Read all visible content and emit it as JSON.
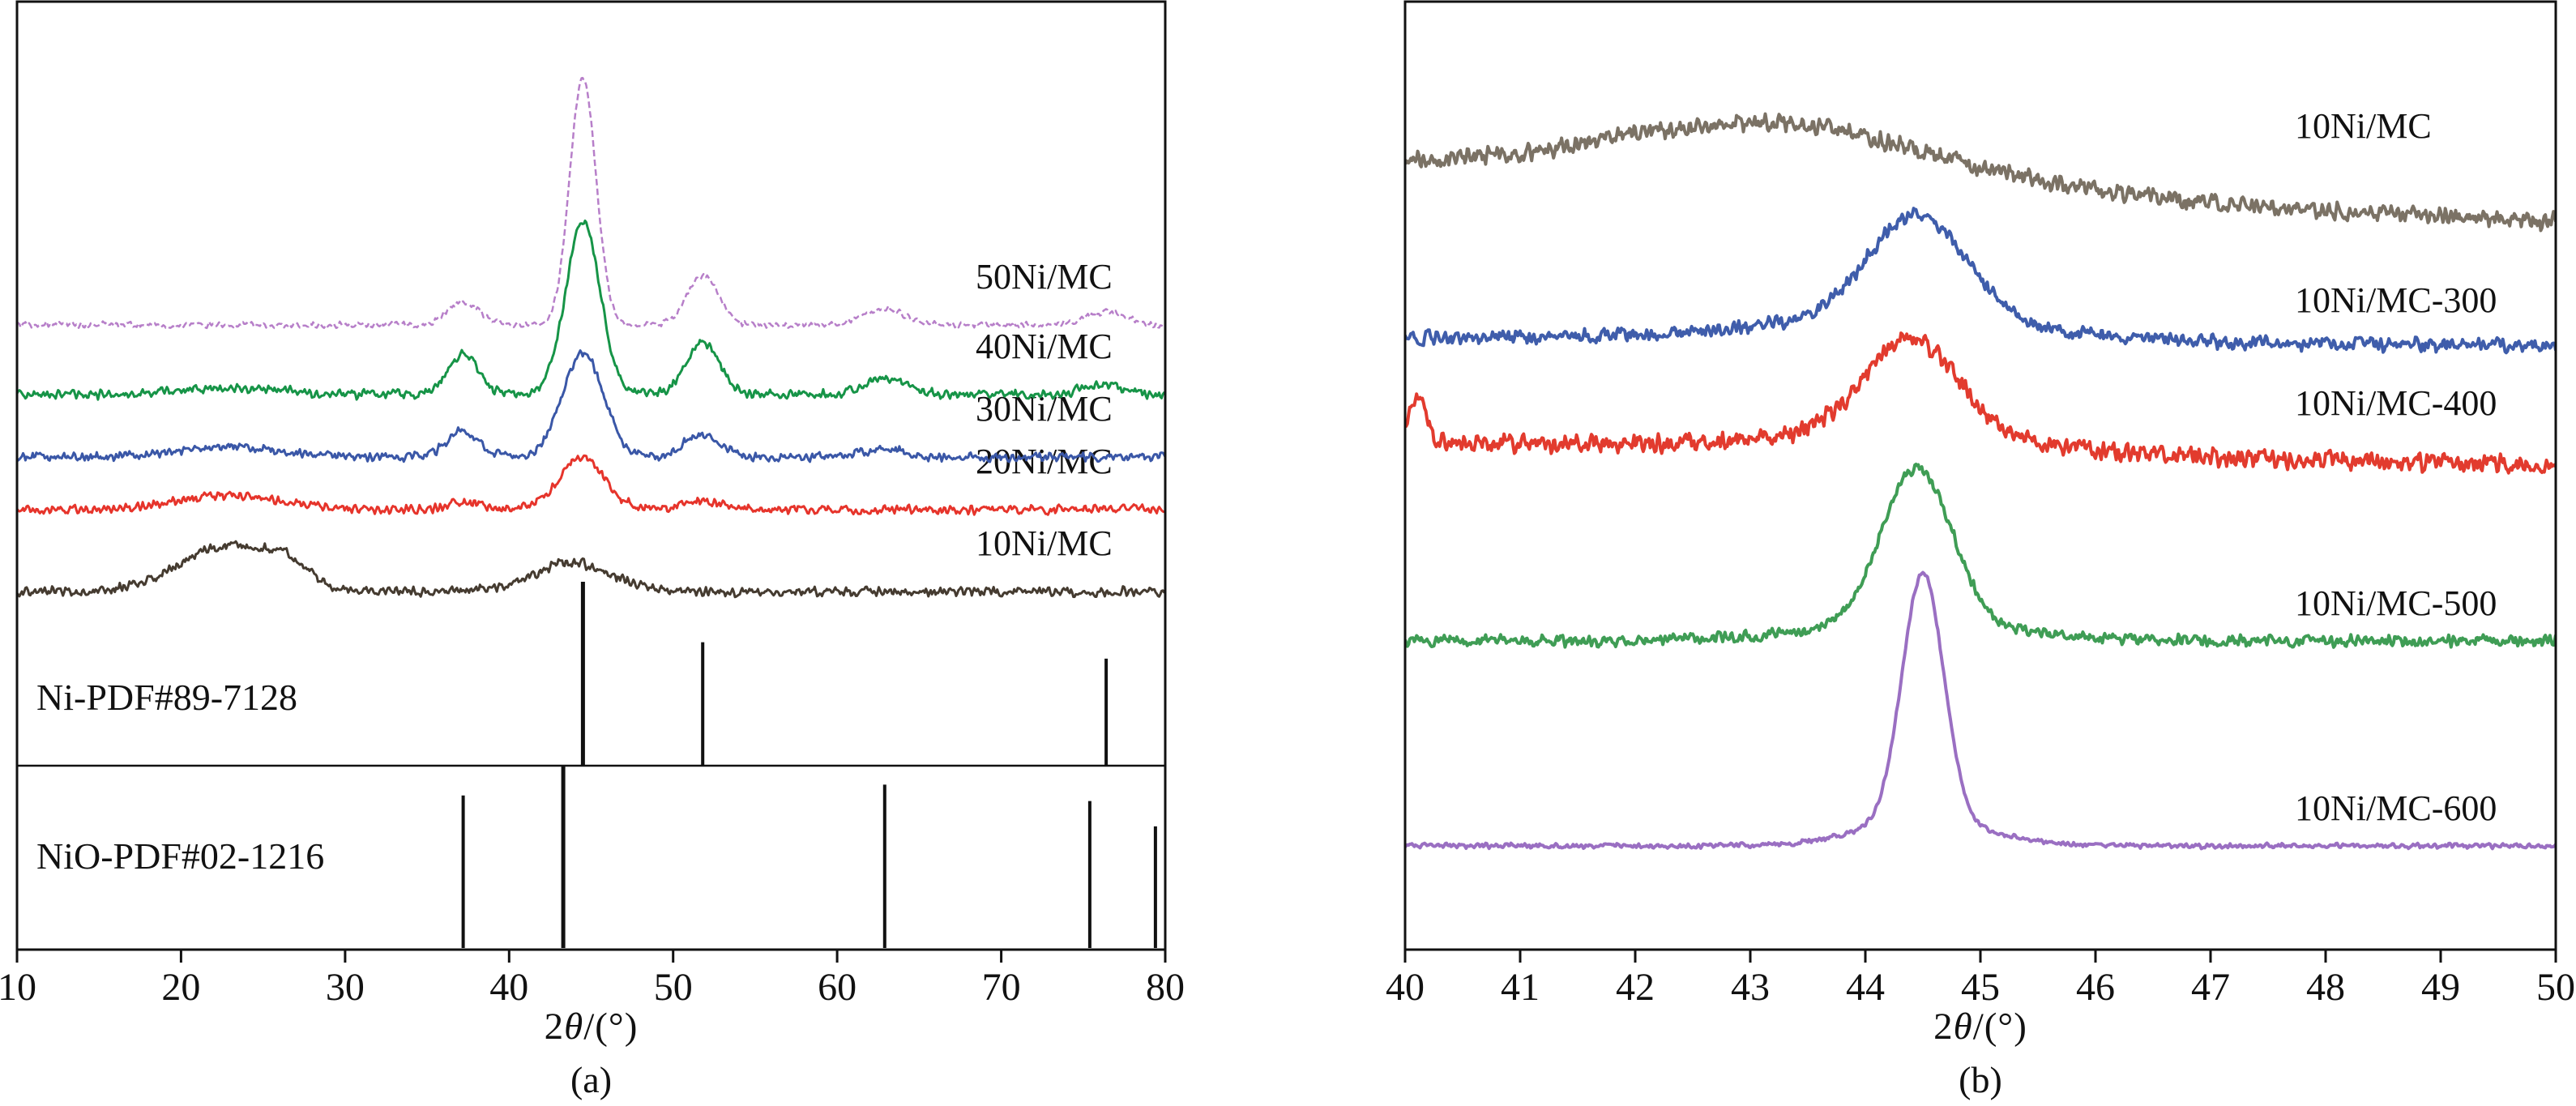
{
  "figure": {
    "background": "#ffffff",
    "ink_color": "#111111"
  },
  "chart_data": [
    {
      "id": "panel-a",
      "type": "line",
      "caption": "(a)",
      "xlabel": "2θ/(°)",
      "xlabel_parts": {
        "num": "2",
        "theta": "θ",
        "rest": "/(°)"
      },
      "xlim": [
        10,
        80
      ],
      "xticks": [
        10,
        20,
        30,
        40,
        50,
        60,
        70,
        80
      ],
      "ylim": [
        0,
        100
      ],
      "grid": false,
      "legend_position": "right-of-traces",
      "series": [
        {
          "name": "10Ni/MC",
          "color": "#453b30",
          "offset": 7.0,
          "slope": 0,
          "noise": 1.0,
          "seed": 11,
          "peaks": [
            {
              "c": 23.0,
              "h": 8.0,
              "w": 3.0
            },
            {
              "c": 26.5,
              "h": 2.5,
              "w": 1.2
            },
            {
              "c": 43.9,
              "h": 5.0,
              "w": 2.4
            }
          ]
        },
        {
          "name": "20Ni/MC",
          "color": "#e6342b",
          "offset": 21.3,
          "slope": 0,
          "noise": 0.95,
          "seed": 22,
          "peaks": [
            {
              "c": 23.0,
              "h": 2.5,
              "w": 3.0
            },
            {
              "c": 37.2,
              "h": 1.2,
              "w": 1.0
            },
            {
              "c": 44.4,
              "h": 9.0,
              "w": 1.4
            },
            {
              "c": 51.8,
              "h": 1.5,
              "w": 1.2
            }
          ]
        },
        {
          "name": "30Ni/MC",
          "color": "#3a57a7",
          "offset": 30.4,
          "slope": 0,
          "noise": 0.95,
          "seed": 33,
          "peaks": [
            {
              "c": 23.0,
              "h": 1.8,
              "w": 3.0
            },
            {
              "c": 37.2,
              "h": 4.5,
              "w": 1.0
            },
            {
              "c": 44.5,
              "h": 18.0,
              "w": 1.25
            },
            {
              "c": 51.8,
              "h": 4.0,
              "w": 1.1
            },
            {
              "c": 62.9,
              "h": 1.5,
              "w": 1.3
            }
          ]
        },
        {
          "name": "40Ni/MC",
          "color": "#169447",
          "offset": 41.3,
          "slope": 0,
          "noise": 0.95,
          "seed": 44,
          "peaks": [
            {
              "c": 23.0,
              "h": 1.2,
              "w": 3.0
            },
            {
              "c": 37.2,
              "h": 7.0,
              "w": 0.95
            },
            {
              "c": 44.5,
              "h": 30.0,
              "w": 1.05
            },
            {
              "c": 51.8,
              "h": 9.0,
              "w": 1.0
            },
            {
              "c": 62.9,
              "h": 2.8,
              "w": 1.3
            },
            {
              "c": 76.2,
              "h": 1.8,
              "w": 1.2
            }
          ]
        },
        {
          "name": "50Ni/MC",
          "color": "#b77fc9",
          "offset": 53.4,
          "slope": 0,
          "noise": 0.65,
          "seed": 55,
          "line_style": "dash-dot",
          "peaks": [
            {
              "c": 37.2,
              "h": 4.0,
              "w": 0.95
            },
            {
              "c": 44.5,
              "h": 43.0,
              "w": 0.8
            },
            {
              "c": 51.8,
              "h": 8.5,
              "w": 0.95
            },
            {
              "c": 62.9,
              "h": 2.8,
              "w": 1.2
            },
            {
              "c": 76.4,
              "h": 2.2,
              "w": 1.2
            }
          ]
        }
      ],
      "reference_patterns": [
        {
          "label": "Ni-PDF#89-7128",
          "lines": [
            {
              "x": 44.5,
              "h": 1.0
            },
            {
              "x": 51.8,
              "h": 0.67
            },
            {
              "x": 76.4,
              "h": 0.58
            }
          ]
        },
        {
          "label": "NiO-PDF#02-1216",
          "lines": [
            {
              "x": 37.2,
              "h": 0.84
            },
            {
              "x": 43.3,
              "h": 1.0
            },
            {
              "x": 62.9,
              "h": 0.9
            },
            {
              "x": 75.4,
              "h": 0.81
            },
            {
              "x": 79.4,
              "h": 0.67
            }
          ]
        }
      ]
    },
    {
      "id": "panel-b",
      "type": "line",
      "caption": "(b)",
      "xlabel": "2θ/(°)",
      "xlabel_parts": {
        "num": "2",
        "theta": "θ",
        "rest": "/(°)"
      },
      "xlim": [
        40,
        50
      ],
      "xticks": [
        40,
        41,
        42,
        43,
        44,
        45,
        46,
        47,
        48,
        49,
        50
      ],
      "ylim": [
        0,
        100
      ],
      "grid": false,
      "legend_position": "right-of-traces",
      "series": [
        {
          "name": "10Ni/MC",
          "color": "#7b7265",
          "offset": 88.0,
          "slope": -0.7,
          "noise": 1.25,
          "seed": 61,
          "peaks": [
            {
              "c": 43.2,
              "h": 7.2,
              "w": 1.4
            }
          ]
        },
        {
          "name": "10Ni/MC-300",
          "color": "#3f5dab",
          "offset": 67.0,
          "slope": -0.1,
          "noise": 1.0,
          "seed": 62,
          "peaks": [
            {
              "c": 44.45,
              "h": 13.0,
              "w": 0.42
            },
            {
              "c": 44.2,
              "h": 2.5,
              "w": 1.3
            }
          ]
        },
        {
          "name": "10Ni/MC-400",
          "color": "#e23b2e",
          "offset": 54.5,
          "slope": -0.3,
          "noise": 1.3,
          "seed": 63,
          "peaks": [
            {
              "c": 44.4,
              "h": 11.5,
              "w": 0.4
            },
            {
              "c": 44.3,
              "h": 2.2,
              "w": 1.1
            },
            {
              "c": 40.1,
              "h": 5.0,
              "w": 0.08
            }
          ]
        },
        {
          "name": "10Ni/MC-500",
          "color": "#3f9d55",
          "offset": 30.3,
          "slope": 0,
          "noise": 0.8,
          "seed": 64,
          "peaks": [
            {
              "c": 44.45,
              "h": 19.0,
              "w": 0.3
            },
            {
              "c": 44.4,
              "h": 2.0,
              "w": 0.9
            }
          ]
        },
        {
          "name": "10Ni/MC-600",
          "color": "#9a6fc2",
          "offset": 5.5,
          "slope": 0,
          "noise": 0.35,
          "seed": 65,
          "peaks": [
            {
              "c": 44.5,
              "h": 30.0,
              "w": 0.18
            },
            {
              "c": 44.5,
              "h": 3.0,
              "w": 0.55
            }
          ]
        }
      ],
      "reference_patterns": []
    }
  ]
}
